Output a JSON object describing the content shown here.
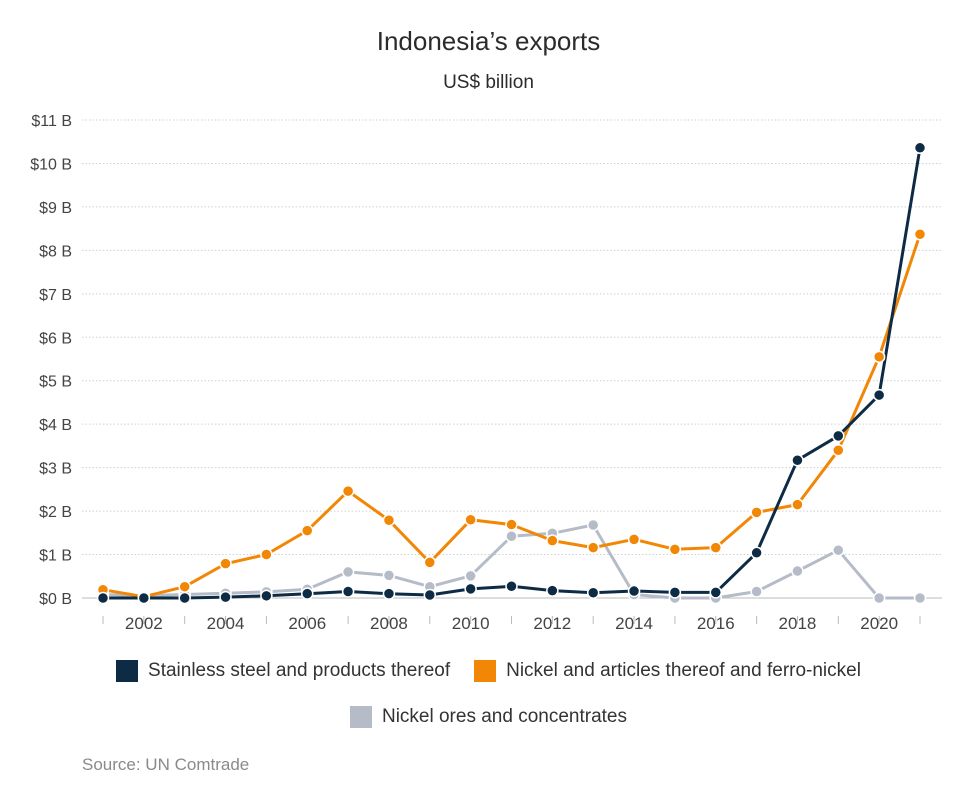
{
  "chart_data": {
    "type": "line",
    "title": "Indonesia’s exports",
    "subtitle": "US$ billion",
    "source": "Source: UN Comtrade",
    "x": [
      2001,
      2002,
      2003,
      2004,
      2005,
      2006,
      2007,
      2008,
      2009,
      2010,
      2011,
      2012,
      2013,
      2014,
      2015,
      2016,
      2017,
      2018,
      2019,
      2020,
      2021
    ],
    "x_tick_labels": [
      "2002",
      "2004",
      "2006",
      "2008",
      "2010",
      "2012",
      "2014",
      "2016",
      "2018",
      "2020"
    ],
    "y_tick_labels": [
      "$0 B",
      "$1 B",
      "$2 B",
      "$3 B",
      "$4 B",
      "$5 B",
      "$6 B",
      "$7 B",
      "$8 B",
      "$9 B",
      "$10 B",
      "$11 B"
    ],
    "ylim": [
      0,
      11
    ],
    "xlim": [
      2001,
      2021
    ],
    "grid": true,
    "legend_position": "bottom",
    "series": [
      {
        "name": "Stainless steel and products thereof",
        "color": "#0d2b45",
        "values": [
          0.0,
          0.0,
          0.0,
          0.02,
          0.05,
          0.1,
          0.15,
          0.1,
          0.07,
          0.21,
          0.27,
          0.17,
          0.12,
          0.16,
          0.13,
          0.13,
          1.04,
          3.17,
          3.73,
          4.67,
          10.36
        ]
      },
      {
        "name": "Nickel and articles thereof and ferro-nickel",
        "color": "#f28705",
        "values": [
          0.19,
          0.03,
          0.26,
          0.79,
          1.0,
          1.55,
          2.46,
          1.79,
          0.82,
          1.8,
          1.69,
          1.32,
          1.16,
          1.35,
          1.12,
          1.16,
          1.97,
          2.15,
          3.4,
          5.55,
          8.37
        ]
      },
      {
        "name": "Nickel ores and concentrates",
        "color": "#b5bcc8",
        "values": [
          0.08,
          0.05,
          0.08,
          0.11,
          0.14,
          0.2,
          0.6,
          0.52,
          0.26,
          0.51,
          1.42,
          1.49,
          1.68,
          0.08,
          0.0,
          0.0,
          0.15,
          0.62,
          1.1,
          0.0,
          0.0
        ]
      }
    ]
  }
}
